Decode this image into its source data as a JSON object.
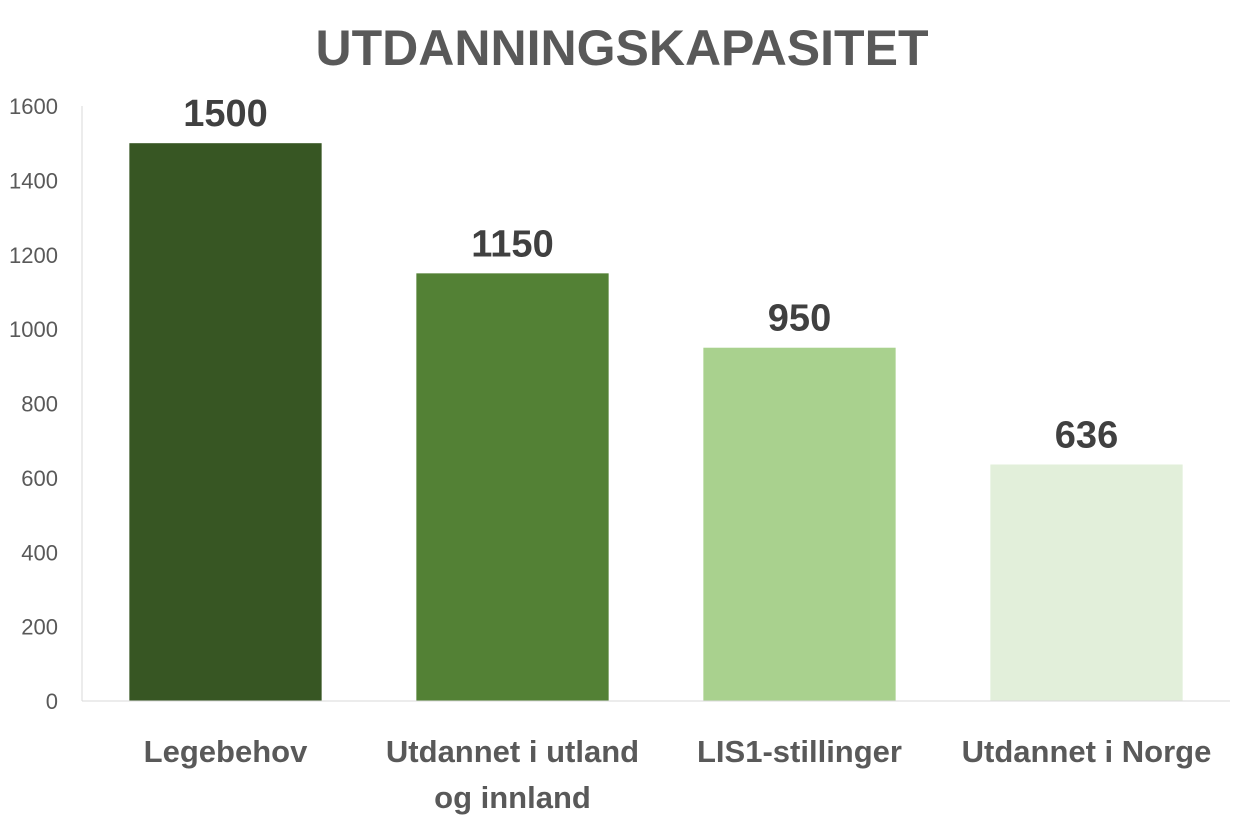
{
  "chart_data": {
    "type": "bar",
    "title": "UTDANNINGSKAPASITET",
    "categories": [
      "Legebehov",
      "Utdannet i utland og innland",
      "LIS1-stillinger",
      "Utdannet i Norge"
    ],
    "category_lines": [
      [
        "Legebehov"
      ],
      [
        "Utdannet i utland",
        "og innland"
      ],
      [
        "LIS1-stillinger"
      ],
      [
        "Utdannet i Norge"
      ]
    ],
    "values": [
      1500,
      1150,
      950,
      636
    ],
    "data_labels": [
      "1500",
      "1150",
      "950",
      "636"
    ],
    "bar_colors": [
      "#375623",
      "#538135",
      "#a9d18e",
      "#e2efda"
    ],
    "ylim": [
      0,
      1600
    ],
    "yticks": [
      0,
      200,
      400,
      600,
      800,
      1000,
      1200,
      1400,
      1600
    ],
    "xlabel": "",
    "ylabel": "",
    "grid": false,
    "legend": "none"
  }
}
